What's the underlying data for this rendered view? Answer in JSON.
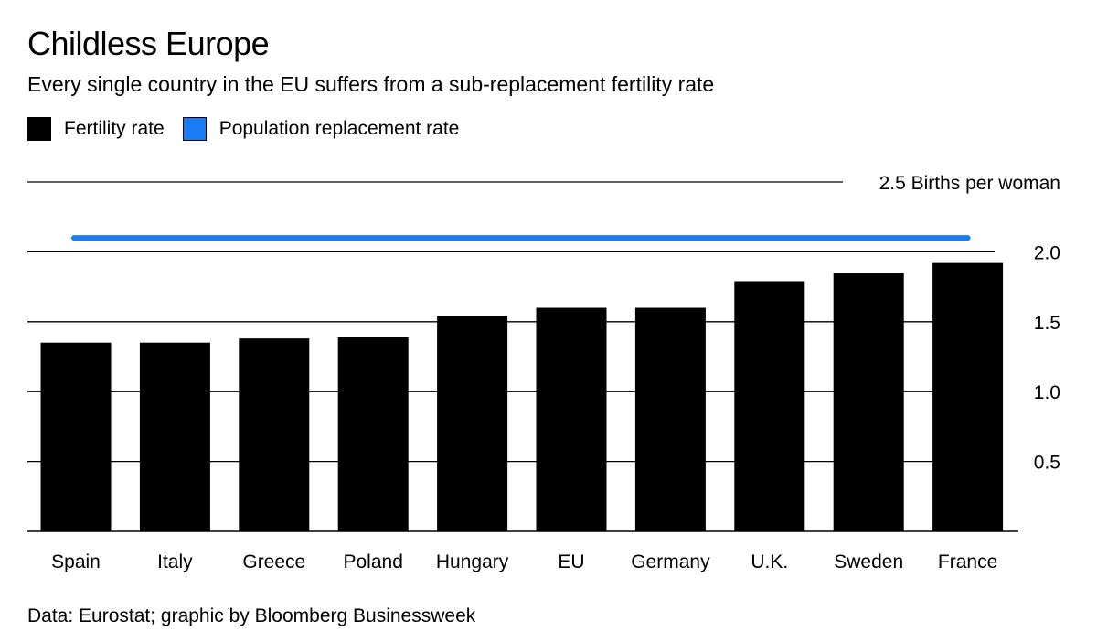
{
  "title": "Childless Europe",
  "subtitle": "Every single country in the EU suffers from a sub-replacement fertility rate",
  "legend": [
    {
      "label": "Fertility rate",
      "color": "#000000"
    },
    {
      "label": "Population replacement rate",
      "color": "#1a7cf5"
    }
  ],
  "source": "Data: Eurostat; graphic by Bloomberg Businessweek",
  "chart_data": {
    "type": "bar",
    "categories": [
      "Spain",
      "Italy",
      "Greece",
      "Poland",
      "Hungary",
      "EU",
      "Germany",
      "U.K.",
      "Sweden",
      "France"
    ],
    "series": [
      {
        "name": "Fertility rate",
        "values": [
          1.35,
          1.35,
          1.38,
          1.39,
          1.54,
          1.6,
          1.6,
          1.79,
          1.85,
          1.92
        ],
        "color": "#000000"
      }
    ],
    "reference_line": {
      "name": "Population replacement rate",
      "value": 2.1,
      "color": "#1a7cf5"
    },
    "ylim": [
      0,
      2.5
    ],
    "yticks": [
      {
        "value": 2.5,
        "label": "2.5 Births per woman"
      },
      {
        "value": 2.0,
        "label": "2.0"
      },
      {
        "value": 1.5,
        "label": "1.5"
      },
      {
        "value": 1.0,
        "label": "1.0"
      },
      {
        "value": 0.5,
        "label": "0.5"
      }
    ],
    "grid": true,
    "legend_position": "top-left"
  }
}
